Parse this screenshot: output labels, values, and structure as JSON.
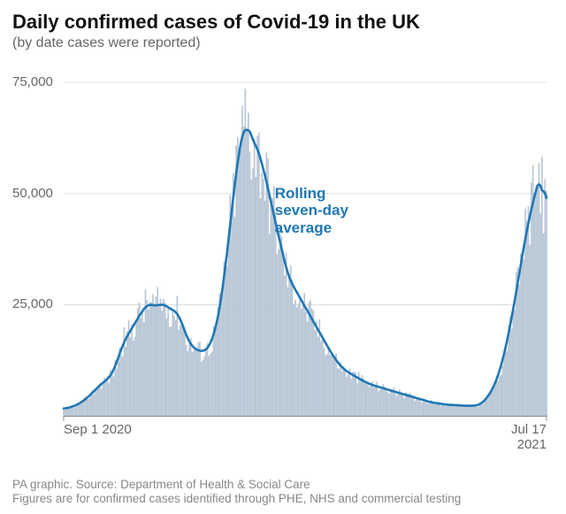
{
  "title": "Daily confirmed cases of Covid-19 in the UK",
  "subtitle": "(by date cases were reported)",
  "type": "bar+line",
  "background_color": "#ffffff",
  "grid_color": "#dddddd",
  "axis_label_color": "#666666",
  "title_color": "#111111",
  "title_fontsize": 22,
  "subtitle_color": "#666666",
  "subtitle_fontsize": 16,
  "footer_color": "#888888",
  "footer_fontsize": 13.5,
  "bar_color": "#b9c7d6",
  "line_color": "#1f77b4",
  "line_width": 2.6,
  "annotation": {
    "text": "Rolling\nseven-day\naverage",
    "color": "#1f77b4",
    "fontsize": 17,
    "fontweight": 700
  },
  "y": {
    "min": 0,
    "max": 80000,
    "ticks": [
      25000,
      50000,
      75000
    ],
    "tick_labels": [
      "25,000",
      "50,000",
      "75,000"
    ]
  },
  "x": {
    "n": 320,
    "ticks": [
      {
        "pos": 0,
        "label": "Sep 1 2020",
        "align": "left"
      },
      {
        "pos": 319,
        "label": "Jul 17\n2021",
        "align": "right"
      }
    ]
  },
  "bars": [
    1500,
    1600,
    1700,
    1800,
    1900,
    2000,
    2100,
    2200,
    2400,
    2500,
    2700,
    2900,
    3100,
    3300,
    3600,
    3900,
    4200,
    4500,
    4800,
    5200,
    5500,
    5900,
    6200,
    6600,
    6900,
    7200,
    7500,
    7800,
    8000,
    8200,
    8500,
    9000,
    9500,
    10000,
    11000,
    12000,
    13000,
    14000,
    15000,
    16000,
    17000,
    17500,
    18000,
    18500,
    19000,
    19500,
    20000,
    21000,
    21500,
    22000,
    22500,
    23000,
    23500,
    24000,
    24500,
    25000,
    25500,
    25200,
    25000,
    24800,
    24600,
    24500,
    24700,
    25000,
    25200,
    25400,
    25100,
    24800,
    24600,
    24400,
    24200,
    24000,
    23800,
    23600,
    23400,
    23200,
    23000,
    22000,
    21000,
    20000,
    19000,
    18000,
    17000,
    16500,
    16000,
    15500,
    15200,
    15000,
    14800,
    14700,
    14600,
    14500,
    14400,
    14500,
    14700,
    15000,
    15500,
    16000,
    17000,
    18000,
    19000,
    20500,
    22000,
    24000,
    26000,
    28000,
    31000,
    34000,
    37000,
    40000,
    43000,
    46000,
    49000,
    52000,
    55000,
    58000,
    60000,
    62000,
    63000,
    64000,
    67000,
    66000,
    65000,
    63000,
    62000,
    62500,
    62000,
    61000,
    60000,
    59000,
    58000,
    57000,
    56000,
    54000,
    52500,
    51000,
    49500,
    48000,
    46500,
    45000,
    43500,
    42000,
    40500,
    39000,
    37500,
    36000,
    34500,
    33000,
    32000,
    31000,
    30000,
    29500,
    29000,
    28500,
    27800,
    27200,
    26600,
    26000,
    25400,
    24800,
    24200,
    23600,
    23000,
    22400,
    21800,
    21200,
    20600,
    20000,
    19400,
    18800,
    18200,
    17600,
    17000,
    16400,
    15800,
    15200,
    14600,
    14000,
    13500,
    13000,
    12500,
    12000,
    11600,
    11200,
    10800,
    10500,
    10200,
    10000,
    9800,
    9600,
    9400,
    9200,
    9000,
    8800,
    8600,
    8400,
    8200,
    8000,
    7800,
    7600,
    7500,
    7400,
    7200,
    7000,
    6900,
    6800,
    6700,
    6600,
    6500,
    6400,
    6300,
    6200,
    6100,
    6000,
    5900,
    5800,
    5700,
    5600,
    5500,
    5400,
    5300,
    5200,
    5100,
    5000,
    4900,
    4800,
    4700,
    4600,
    4500,
    4400,
    4300,
    4200,
    4100,
    4000,
    3900,
    3800,
    3700,
    3600,
    3500,
    3400,
    3300,
    3200,
    3100,
    3000,
    2950,
    2900,
    2850,
    2800,
    2750,
    2700,
    2650,
    2600,
    2550,
    2500,
    2480,
    2460,
    2440,
    2420,
    2400,
    2380,
    2360,
    2340,
    2320,
    2300,
    2280,
    2270,
    2260,
    2250,
    2240,
    2230,
    2220,
    2250,
    2300,
    2350,
    2400,
    2500,
    2700,
    3000,
    3400,
    3800,
    4200,
    4700,
    5200,
    5800,
    6500,
    7200,
    8000,
    9000,
    10000,
    11000,
    12500,
    14000,
    15500,
    17000,
    18500,
    20000,
    22000,
    24000,
    26000,
    28000,
    30000,
    32000,
    34000,
    36000,
    38000,
    40000,
    42000,
    43500,
    45000,
    46500,
    48000,
    49500,
    51000,
    52000,
    53000,
    54000,
    55000,
    50000,
    47000,
    44000
  ],
  "footer1": "PA graphic. Source: Department of Health & Social Care",
  "footer2": "Figures are for confirmed cases identified through PHE, NHS and commercial testing"
}
